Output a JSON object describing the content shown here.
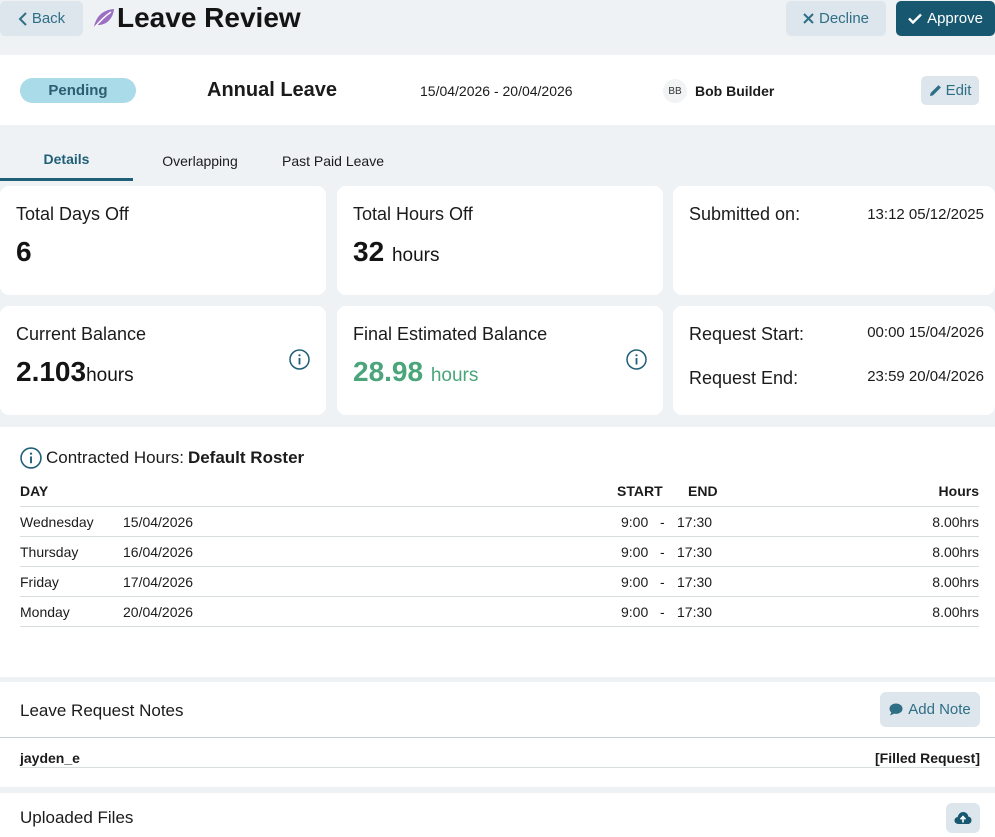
{
  "header": {
    "back_label": "Back",
    "title": "Leave Review",
    "decline_label": "Decline",
    "approve_label": "Approve"
  },
  "summary": {
    "status": "Pending",
    "leave_type": "Annual Leave",
    "date_range": "15/04/2026 - 20/04/2026",
    "employee_initials": "BB",
    "employee_name": "Bob Builder",
    "edit_label": "Edit"
  },
  "tabs": [
    {
      "label": "Details",
      "active": true
    },
    {
      "label": "Overlapping",
      "active": false
    },
    {
      "label": "Past Paid Leave",
      "active": false
    }
  ],
  "cards": {
    "total_days_label": "Total Days Off",
    "total_days_value": "6",
    "total_hours_label": "Total Hours Off",
    "total_hours_value": "32",
    "total_hours_unit": "hours",
    "submitted_label": "Submitted on:",
    "submitted_value": "13:12 05/12/2025",
    "current_balance_label": "Current Balance",
    "current_balance_value": "2.103",
    "current_balance_unit": "hours",
    "final_balance_label": "Final Estimated Balance",
    "final_balance_value": "28.98",
    "final_balance_unit": "hours",
    "request_start_label": "Request Start:",
    "request_start_value": "00:00 15/04/2026",
    "request_end_label": "Request End:",
    "request_end_value": "23:59 20/04/2026"
  },
  "contracted": {
    "label": "Contracted Hours:",
    "roster": "Default Roster",
    "columns": {
      "day": "DAY",
      "start": "START",
      "end": "END",
      "hours": "Hours"
    },
    "rows": [
      {
        "day": "Wednesday",
        "date": "15/04/2026",
        "start": "9:00",
        "sep": "-",
        "end": "17:30",
        "hours": "8.00hrs"
      },
      {
        "day": "Thursday",
        "date": "16/04/2026",
        "start": "9:00",
        "sep": "-",
        "end": "17:30",
        "hours": "8.00hrs"
      },
      {
        "day": "Friday",
        "date": "17/04/2026",
        "start": "9:00",
        "sep": "-",
        "end": "17:30",
        "hours": "8.00hrs"
      },
      {
        "day": "Monday",
        "date": "20/04/2026",
        "start": "9:00",
        "sep": "-",
        "end": "17:30",
        "hours": "8.00hrs"
      }
    ]
  },
  "notes": {
    "title": "Leave Request Notes",
    "add_label": "Add Note",
    "items": [
      {
        "user": "jayden_e",
        "tag": "[Filled Request]"
      }
    ]
  },
  "files": {
    "title": "Uploaded Files"
  },
  "colors": {
    "primary": "#175870",
    "accent_text": "#2f6f86",
    "badge_bg": "#a9dbe8",
    "positive": "#4aa57a",
    "leaf": "#9b6fc4"
  }
}
